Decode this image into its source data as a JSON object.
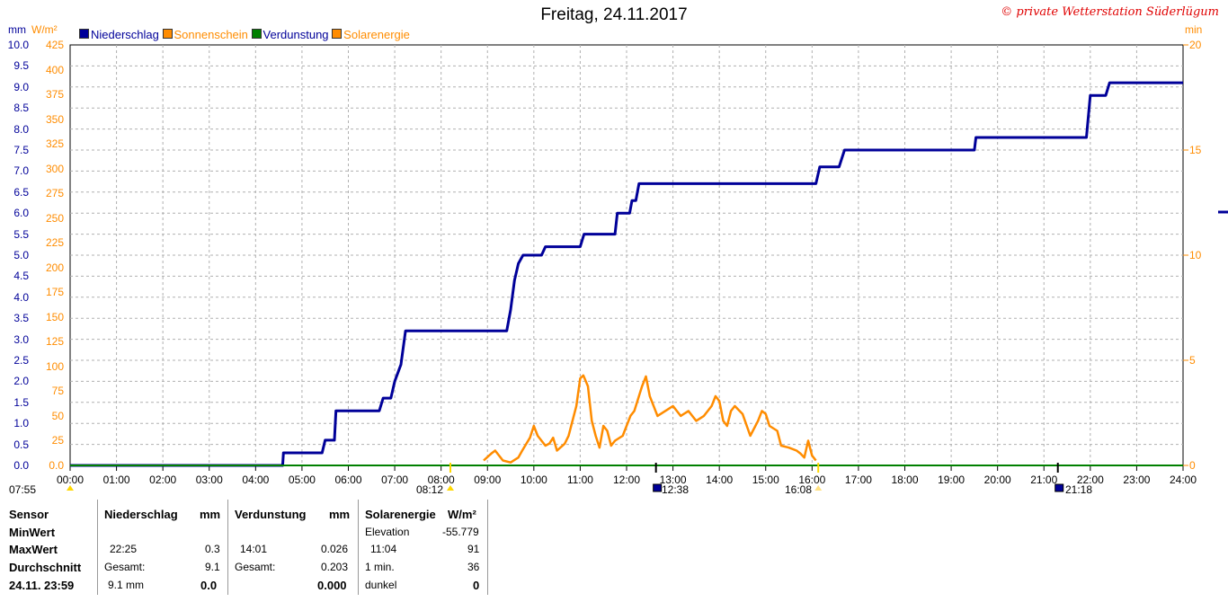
{
  "header": {
    "title": "Freitag, 24.11.2017",
    "copyright": "© private Wetterstation Süderlügum"
  },
  "legend": [
    {
      "label": "Niederschlag",
      "color": "#000099"
    },
    {
      "label": "Sonnenschein",
      "color": "#ff8c00"
    },
    {
      "label": "Verdunstung",
      "color": "#008000"
    },
    {
      "label": "Solarenergie",
      "color": "#ff8c00"
    }
  ],
  "units": {
    "left_mm": "mm",
    "left_wm2": "W/m²",
    "right_min": "min"
  },
  "axes": {
    "y_mm_ticks": [
      "10.0",
      "9.5",
      "9.0",
      "8.5",
      "8.0",
      "7.5",
      "7.0",
      "6.5",
      "6.0",
      "5.5",
      "5.0",
      "4.5",
      "4.0",
      "3.5",
      "3.0",
      "2.5",
      "2.0",
      "1.5",
      "1.0",
      "0.5",
      "0.0"
    ],
    "y_wm2_ticks": [
      "425",
      "400",
      "375",
      "350",
      "325",
      "300",
      "275",
      "250",
      "225",
      "200",
      "175",
      "150",
      "125",
      "100",
      "75",
      "50",
      "25",
      "0.0"
    ],
    "y_min_ticks": [
      "20",
      "15",
      "10",
      "5",
      "0"
    ],
    "x_ticks": [
      "00:00",
      "01:00",
      "02:00",
      "03:00",
      "04:00",
      "05:00",
      "06:00",
      "07:00",
      "08:00",
      "09:00",
      "10:00",
      "11:00",
      "12:00",
      "13:00",
      "14:00",
      "15:00",
      "16:00",
      "17:00",
      "18:00",
      "19:00",
      "20:00",
      "21:00",
      "22:00",
      "23:00",
      "24:00"
    ]
  },
  "sun_events": {
    "sunrise": "08:12",
    "noon": "12:38",
    "sunset": "16:08",
    "moon": "21:18",
    "left_time": "07:55"
  },
  "chart_data": {
    "type": "line",
    "title": "Freitag, 24.11.2017",
    "x_range": [
      "00:00",
      "24:00"
    ],
    "ylim_mm": [
      0,
      10
    ],
    "ylim_wm2": [
      0,
      425
    ],
    "ylim_min": [
      0,
      20
    ],
    "grid": true,
    "legend_position": "top-left",
    "series": [
      {
        "name": "Niederschlag",
        "unit": "mm",
        "color": "#000099",
        "x": [
          "00:00",
          "04:35",
          "04:36",
          "05:26",
          "05:30",
          "05:42",
          "05:44",
          "06:40",
          "06:45",
          "06:55",
          "07:00",
          "07:08",
          "07:14",
          "09:25",
          "09:30",
          "09:35",
          "09:40",
          "09:46",
          "10:10",
          "10:15",
          "11:00",
          "11:05",
          "11:45",
          "11:48",
          "12:04",
          "12:07",
          "12:12",
          "12:16",
          "16:05",
          "16:10",
          "16:35",
          "16:42",
          "19:30",
          "19:32",
          "21:55",
          "22:00",
          "22:20",
          "22:25",
          "24:00"
        ],
        "values": [
          0.0,
          0.0,
          0.3,
          0.3,
          0.6,
          0.6,
          1.3,
          1.3,
          1.6,
          1.6,
          2.0,
          2.4,
          3.2,
          3.2,
          3.7,
          4.4,
          4.8,
          5.0,
          5.0,
          5.2,
          5.2,
          5.5,
          5.5,
          6.0,
          6.0,
          6.3,
          6.3,
          6.7,
          6.7,
          7.1,
          7.1,
          7.5,
          7.5,
          7.8,
          7.8,
          8.8,
          8.8,
          9.1,
          9.1
        ]
      },
      {
        "name": "Solarenergie",
        "unit": "W/m²",
        "color": "#ff8c00",
        "x": [
          "08:55",
          "09:05",
          "09:10",
          "09:15",
          "09:20",
          "09:30",
          "09:40",
          "09:45",
          "09:55",
          "10:00",
          "10:05",
          "10:15",
          "10:20",
          "10:25",
          "10:30",
          "10:40",
          "10:45",
          "10:55",
          "11:00",
          "11:04",
          "11:10",
          "11:15",
          "11:20",
          "11:25",
          "11:30",
          "11:35",
          "11:40",
          "11:45",
          "11:55",
          "12:05",
          "12:10",
          "12:20",
          "12:25",
          "12:30",
          "12:35",
          "12:40",
          "12:50",
          "13:00",
          "13:10",
          "13:20",
          "13:30",
          "13:40",
          "13:50",
          "13:55",
          "14:00",
          "14:05",
          "14:10",
          "14:15",
          "14:20",
          "14:30",
          "14:40",
          "14:50",
          "14:55",
          "15:00",
          "15:05",
          "15:15",
          "15:20",
          "15:30",
          "15:40",
          "15:45",
          "15:50",
          "15:55",
          "16:00",
          "16:05"
        ],
        "values": [
          5,
          12,
          15,
          10,
          5,
          3,
          8,
          15,
          28,
          40,
          30,
          20,
          22,
          28,
          15,
          22,
          30,
          60,
          88,
          91,
          80,
          45,
          30,
          18,
          40,
          35,
          20,
          25,
          30,
          50,
          55,
          80,
          90,
          70,
          60,
          50,
          55,
          60,
          50,
          55,
          45,
          50,
          60,
          70,
          65,
          45,
          40,
          55,
          60,
          52,
          30,
          45,
          55,
          52,
          40,
          35,
          20,
          18,
          15,
          12,
          8,
          25,
          10,
          5
        ]
      },
      {
        "name": "Verdunstung",
        "unit": "mm",
        "color": "#008000",
        "x": [
          "00:00",
          "24:00"
        ],
        "values": [
          0.0,
          0.0
        ]
      },
      {
        "name": "Sonnenschein",
        "unit": "min",
        "color": "#ff8c00",
        "x": [
          "00:00",
          "24:00"
        ],
        "values": [
          0,
          0
        ]
      }
    ]
  },
  "stats": {
    "headers": {
      "sensor": "Sensor",
      "niederschlag": "Niederschlag",
      "niederschlag_unit": "mm",
      "verdunstung": "Verdunstung",
      "verdunstung_unit": "mm",
      "solar": "Solarenergie",
      "solar_unit": "W/m²"
    },
    "row_labels": {
      "min": "MinWert",
      "max": "MaxWert",
      "avg": "Durchschnitt",
      "date": "24.11. 23:59"
    },
    "solar_elevation_label": "Elevation",
    "solar_elevation_value": "-55.779",
    "niederschlag": {
      "max_time": "22:25",
      "max_value": "0.3",
      "gesamt_label": "Gesamt:",
      "gesamt": "9.1",
      "date_value": "9.1 mm",
      "date_bold": "0.0"
    },
    "verdunstung": {
      "max_time": "14:01",
      "max_value": "0.026",
      "gesamt_label": "Gesamt:",
      "gesamt": "0.203",
      "date_bold": "0.000"
    },
    "solar": {
      "max_time": "11:04",
      "max_value": "91",
      "one_min_label": "1 min.",
      "one_min_value": "36",
      "dark_label": "dunkel",
      "dark_value": "0"
    }
  }
}
